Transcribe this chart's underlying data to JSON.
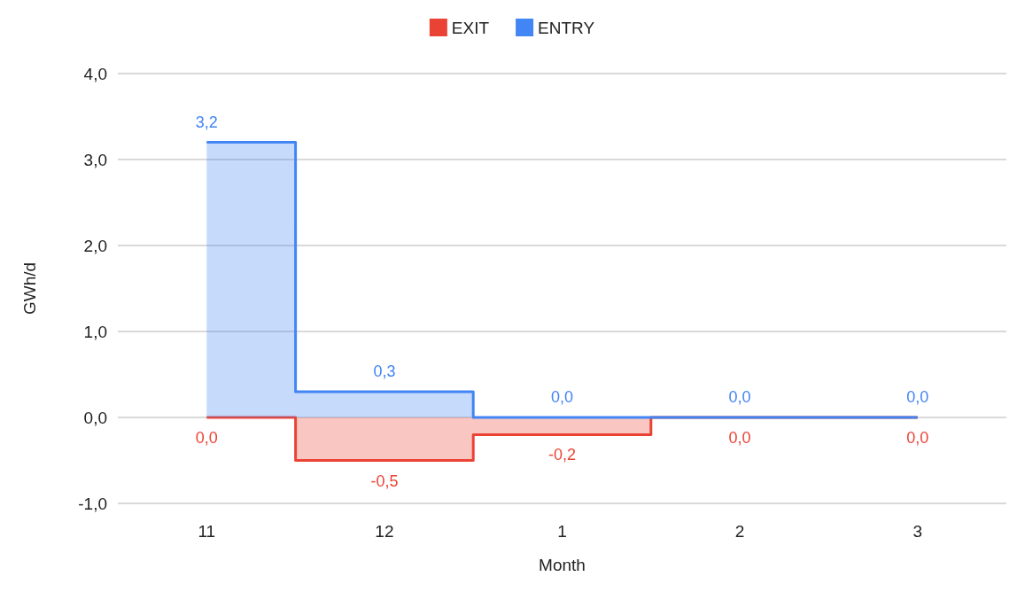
{
  "chart_data": {
    "type": "step",
    "xlabel": "Month",
    "ylabel": "GWh/d",
    "categories": [
      "11",
      "12",
      "1",
      "2",
      "3"
    ],
    "series": [
      {
        "name": "EXIT",
        "color": "#ea4335",
        "values": [
          0,
          -0.5,
          -0.2,
          0,
          0
        ],
        "value_labels": [
          "0,0",
          "-0,5",
          "-0,2",
          "0,0",
          "0,0"
        ]
      },
      {
        "name": "ENTRY",
        "color": "#4285f4",
        "values": [
          3.2,
          0.3,
          0,
          0,
          0
        ],
        "value_labels": [
          "3,2",
          "0,3",
          "0,0",
          "0,0",
          "0,0"
        ]
      }
    ],
    "ylim": [
      -1,
      4
    ],
    "yticks": [
      {
        "value": -1,
        "label": "-1,0"
      },
      {
        "value": 0,
        "label": "0,0"
      },
      {
        "value": 1,
        "label": "1,0"
      },
      {
        "value": 2,
        "label": "2,0"
      },
      {
        "value": 3,
        "label": "3,0"
      },
      {
        "value": 4,
        "label": "4,0"
      }
    ],
    "grid": "y",
    "legend": "top"
  }
}
